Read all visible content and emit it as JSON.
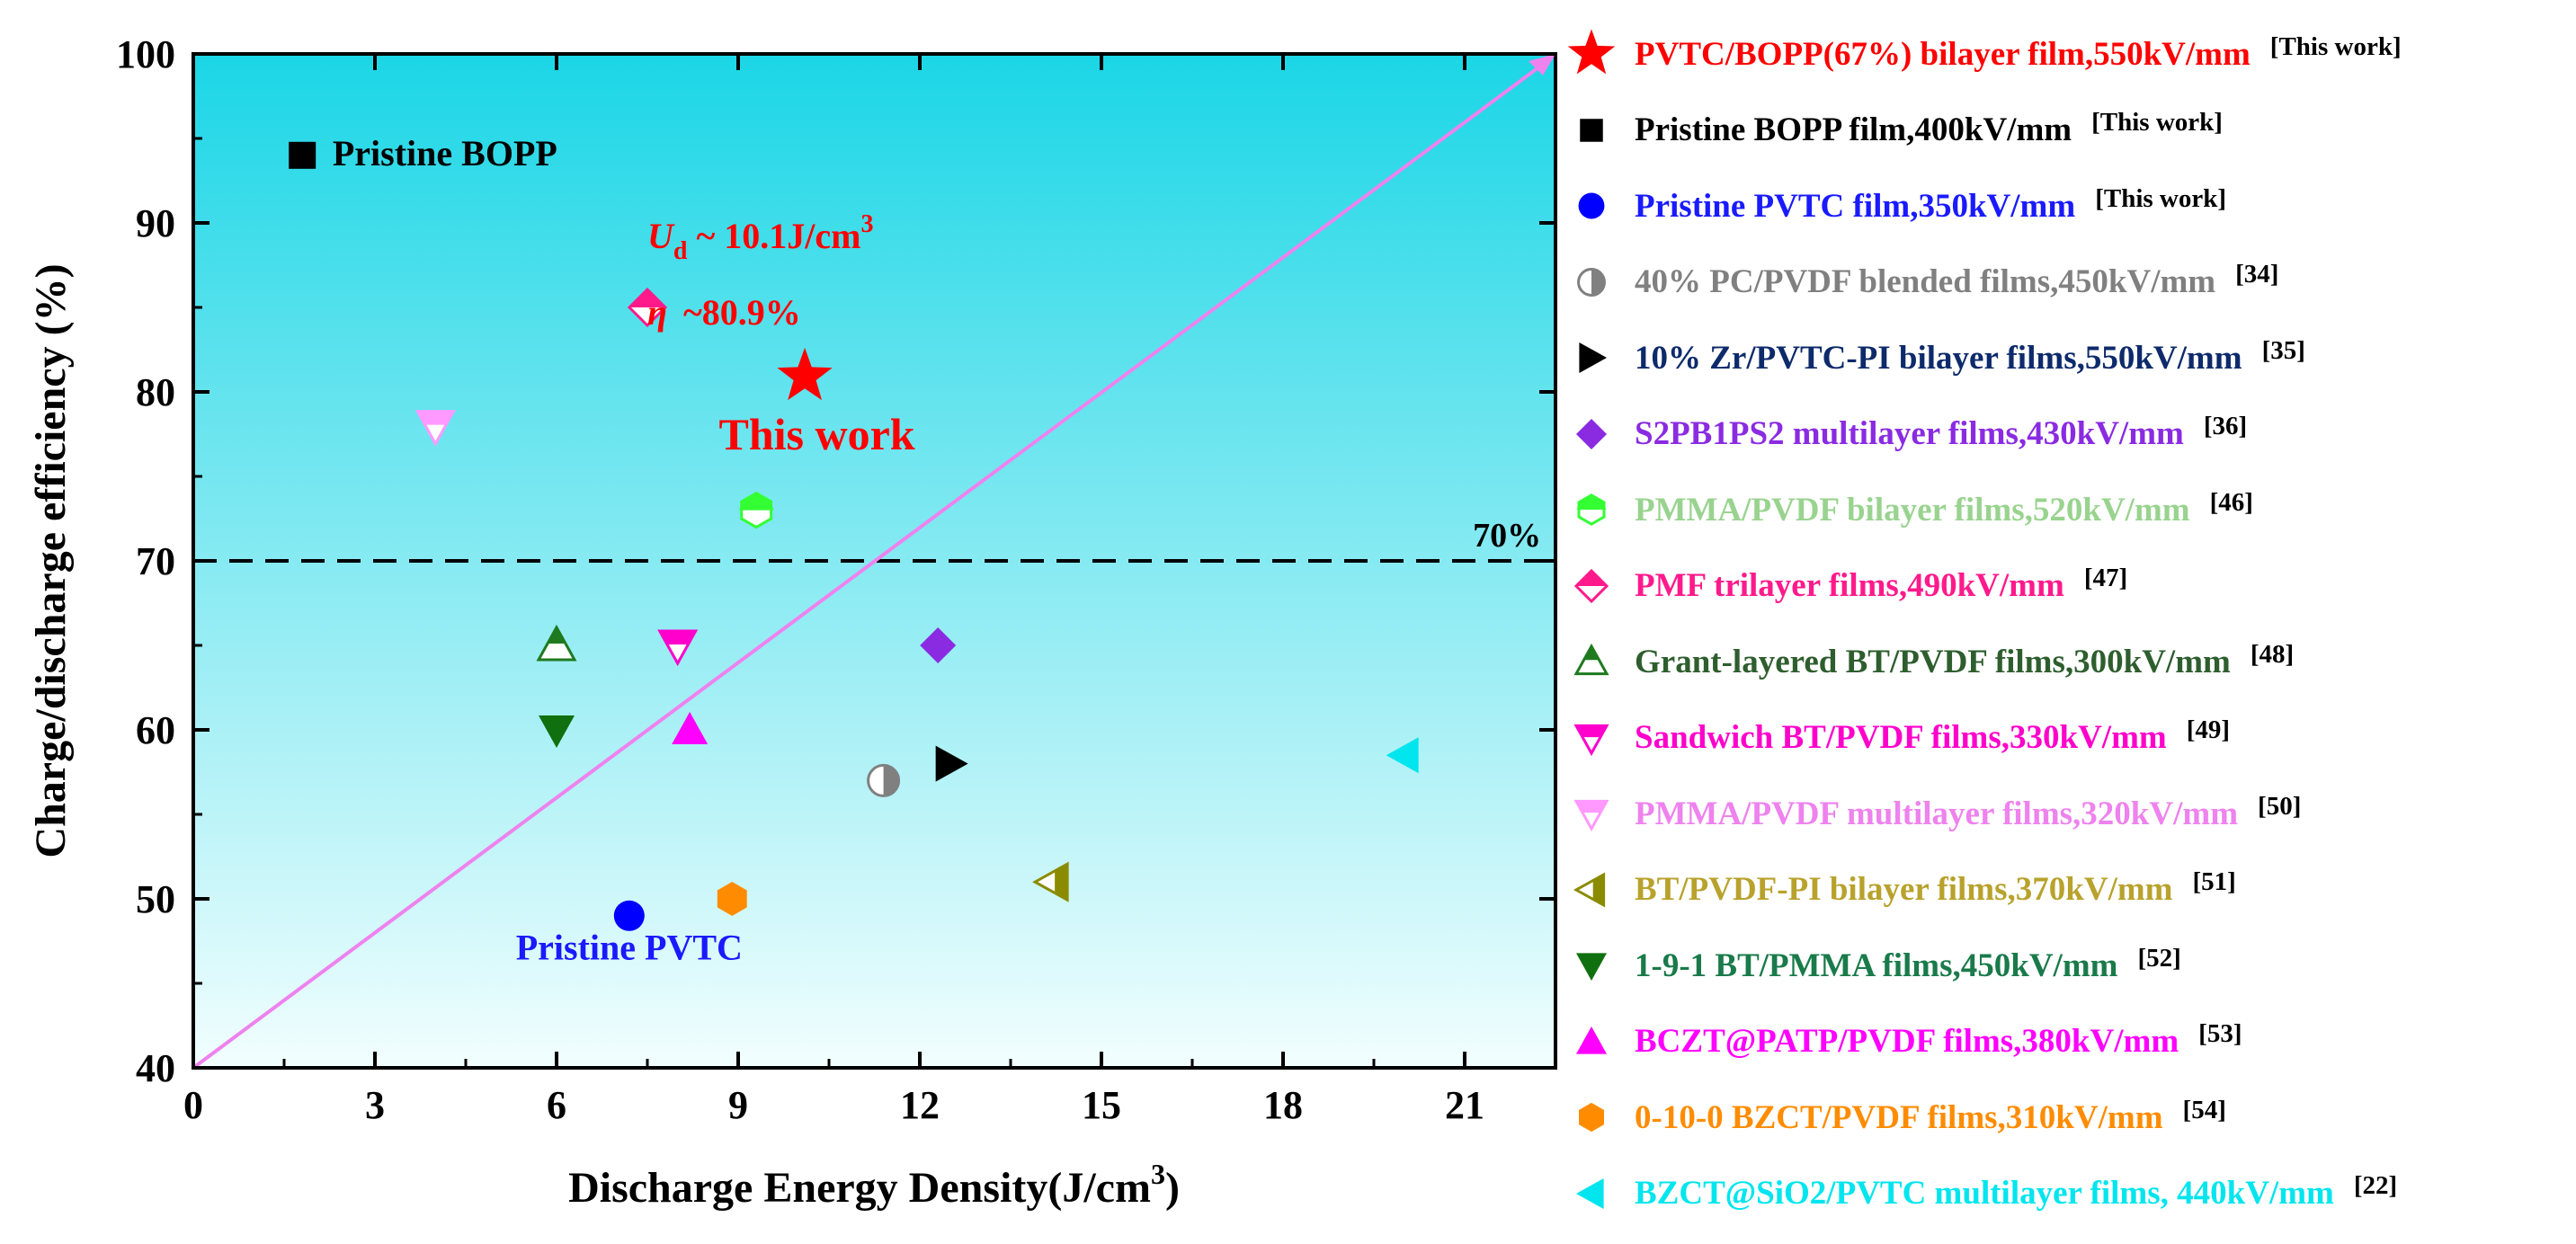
{
  "colors": {
    "bg_top": "#1bd6e6",
    "bg_bottom": "#f2fefe",
    "diagonal": "#ee82ee",
    "red": "#ff0000",
    "dash": "#000000"
  },
  "chart_data": {
    "type": "scatter",
    "title": "",
    "xlabel": "Discharge Energy Density(J/cm3)",
    "ylabel": "Charge/discharge efficiency (%)",
    "xlim": [
      0,
      22.5
    ],
    "ylim": [
      40,
      100
    ],
    "xticks": [
      "0",
      "3",
      "6",
      "9",
      "12",
      "15",
      "18",
      "21"
    ],
    "yticks": [
      "40",
      "50",
      "60",
      "70",
      "80",
      "90",
      "100"
    ],
    "threshold_line": {
      "y": 70,
      "label": "70%"
    },
    "diagonal_line": {
      "from": [
        0,
        40
      ],
      "to": [
        22.5,
        100
      ]
    },
    "annotations": {
      "ud_prefix": "U",
      "ud_sub": "d",
      "ud_value": " ~ 10.1J/cm",
      "ud_sup": "3",
      "eta_symbol": "η",
      "eta_value": "~80.9%",
      "this_work": "This work",
      "pristine_bopp": "Pristine BOPP",
      "pristine_pvtc": "Pristine PVTC"
    },
    "series": [
      {
        "name": "PVTC/BOPP(67%) bilayer film,550kV/mm",
        "ref": "[This work]",
        "marker": "star",
        "color": "#ff0000",
        "labelColor": "#ff0000",
        "x": 10.1,
        "y": 80.9
      },
      {
        "name": "Pristine BOPP film,400kV/mm",
        "ref": "[This work]",
        "marker": "square",
        "color": "#000000",
        "labelColor": "#000000",
        "x": 1.8,
        "y": 94
      },
      {
        "name": "Pristine PVTC film,350kV/mm",
        "ref": "[This work]",
        "marker": "circle",
        "color": "#0000ff",
        "labelColor": "#1a1aff",
        "x": 7.2,
        "y": 49
      },
      {
        "name": "40% PC/PVDF blended films,450kV/mm",
        "ref": "[34]",
        "marker": "half-circle",
        "color": "#808080",
        "labelColor": "#808080",
        "x": 11.4,
        "y": 57
      },
      {
        "name": "10% Zr/PVTC-PI bilayer films,550kV/mm",
        "ref": "[35]",
        "marker": "triangle-right",
        "color": "#000000",
        "labelColor": "#0d2a6b",
        "x": 12.5,
        "y": 58
      },
      {
        "name": "S2PB1PS2 multilayer films,430kV/mm",
        "ref": "[36]",
        "marker": "diamond",
        "color": "#8a2be2",
        "labelColor": "#8a2be2",
        "x": 12.3,
        "y": 65
      },
      {
        "name": "PMMA/PVDF bilayer films,520kV/mm",
        "ref": "[46]",
        "marker": "half-hexagon",
        "color": "#33ff33",
        "labelColor": "#99d38f",
        "x": 9.3,
        "y": 73
      },
      {
        "name": "PMF trilayer films,490kV/mm",
        "ref": "[47]",
        "marker": "half-diamond",
        "color": "#ff1a8c",
        "labelColor": "#ff1a8c",
        "x": 7.5,
        "y": 85
      },
      {
        "name": "Grant-layered BT/PVDF films,300kV/mm",
        "ref": "[48]",
        "marker": "half-triangle-up",
        "color": "#1f7a1f",
        "labelColor": "#2e5e2e",
        "x": 6.0,
        "y": 65
      },
      {
        "name": "Sandwich BT/PVDF films,330kV/mm",
        "ref": "[49]",
        "marker": "half-triangle-down",
        "color": "#ff00cc",
        "labelColor": "#ff00cc",
        "x": 8.0,
        "y": 65
      },
      {
        "name": "PMMA/PVDF multilayer films,320kV/mm",
        "ref": "[50]",
        "marker": "half-triangle-down",
        "color": "#ff99ff",
        "labelColor": "#ee82ee",
        "x": 4.0,
        "y": 78
      },
      {
        "name": "BT/PVDF-PI bilayer films,370kV/mm",
        "ref": "[51]",
        "marker": "half-triangle-left",
        "color": "#8b8b00",
        "labelColor": "#b8a22c",
        "x": 14.2,
        "y": 51
      },
      {
        "name": "1-9-1 BT/PMMA films,450kV/mm",
        "ref": "[52]",
        "marker": "triangle-down",
        "color": "#107010",
        "labelColor": "#1a7a4a",
        "x": 6.0,
        "y": 60
      },
      {
        "name": "BCZT@PATP/PVDF films,380kV/mm",
        "ref": "[53]",
        "marker": "triangle-up",
        "color": "#ff00ff",
        "labelColor": "#ff00ff",
        "x": 8.2,
        "y": 60
      },
      {
        "name": "0-10-0 BZCT/PVDF films,310kV/mm",
        "ref": "[54]",
        "marker": "hexagon",
        "color": "#ff8c00",
        "labelColor": "#ff8c00",
        "x": 8.9,
        "y": 50
      },
      {
        "name": "BZCT@SiO2/PVTC multilayer films, 440kV/mm",
        "ref": "[22]",
        "marker": "triangle-left",
        "color": "#00e5ee",
        "labelColor": "#00e5ee",
        "x": 20.0,
        "y": 58.5
      }
    ]
  }
}
